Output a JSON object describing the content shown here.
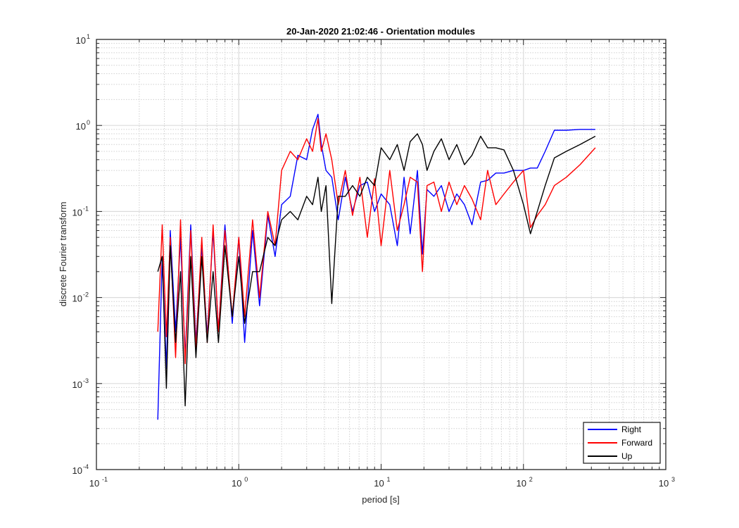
{
  "chart_data": {
    "type": "line",
    "title": "20-Jan-2020 21:02:46 - Orientation modules",
    "xlabel": "period [s]",
    "ylabel": "discrete Fourier transform",
    "xscale": "log",
    "yscale": "log",
    "xlim": [
      0.1,
      1000
    ],
    "ylim": [
      0.0001,
      10
    ],
    "grid": true,
    "minor_grid": true,
    "legend_placement": "bottom-right",
    "x_ticks": [
      {
        "base": "10",
        "exp": "-1"
      },
      {
        "base": "10",
        "exp": "0"
      },
      {
        "base": "10",
        "exp": "1"
      },
      {
        "base": "10",
        "exp": "2"
      },
      {
        "base": "10",
        "exp": "3"
      }
    ],
    "y_ticks": [
      {
        "base": "10",
        "exp": "-4"
      },
      {
        "base": "10",
        "exp": "-3"
      },
      {
        "base": "10",
        "exp": "-2"
      },
      {
        "base": "10",
        "exp": "-1"
      },
      {
        "base": "10",
        "exp": "0"
      },
      {
        "base": "10",
        "exp": "1"
      }
    ],
    "series": [
      {
        "name": "Right",
        "color": "#0000ff",
        "x": [
          0.27,
          0.29,
          0.31,
          0.33,
          0.36,
          0.39,
          0.42,
          0.46,
          0.5,
          0.55,
          0.6,
          0.66,
          0.72,
          0.8,
          0.9,
          1.0,
          1.1,
          1.25,
          1.4,
          1.6,
          1.8,
          2.0,
          2.3,
          2.6,
          3.0,
          3.3,
          3.6,
          3.8,
          4.1,
          4.5,
          5.0,
          5.6,
          6.3,
          7.1,
          8.0,
          9.0,
          10.0,
          11.5,
          13.0,
          14.5,
          16.0,
          18.0,
          19.5,
          21.0,
          23.5,
          26.5,
          30.0,
          34.0,
          38.5,
          43.5,
          50.0,
          56.0,
          64.0,
          73.0,
          85.0,
          100.0,
          112.0,
          125.0,
          142.0,
          165.0,
          200.0,
          250.0,
          320.0
        ],
        "y": [
          0.00038,
          0.03,
          0.0015,
          0.06,
          0.004,
          0.05,
          0.002,
          0.07,
          0.003,
          0.04,
          0.0035,
          0.06,
          0.004,
          0.07,
          0.005,
          0.05,
          0.003,
          0.06,
          0.008,
          0.09,
          0.03,
          0.12,
          0.15,
          0.45,
          0.4,
          0.9,
          1.35,
          0.6,
          0.3,
          0.25,
          0.08,
          0.25,
          0.1,
          0.2,
          0.22,
          0.1,
          0.16,
          0.12,
          0.04,
          0.25,
          0.055,
          0.3,
          0.032,
          0.18,
          0.15,
          0.2,
          0.1,
          0.16,
          0.12,
          0.07,
          0.22,
          0.23,
          0.28,
          0.28,
          0.3,
          0.3,
          0.32,
          0.32,
          0.5,
          0.88,
          0.88,
          0.9,
          0.9
        ]
      },
      {
        "name": "Forward",
        "color": "#ff0000",
        "x": [
          0.27,
          0.29,
          0.31,
          0.33,
          0.36,
          0.39,
          0.42,
          0.46,
          0.5,
          0.55,
          0.6,
          0.66,
          0.72,
          0.8,
          0.9,
          1.0,
          1.1,
          1.25,
          1.4,
          1.6,
          1.8,
          2.0,
          2.3,
          2.6,
          3.0,
          3.3,
          3.6,
          3.8,
          4.1,
          4.5,
          5.0,
          5.6,
          6.3,
          7.1,
          8.0,
          9.0,
          10.0,
          11.5,
          13.0,
          14.5,
          16.0,
          18.0,
          19.5,
          21.0,
          23.5,
          26.5,
          30.0,
          34.0,
          38.5,
          43.5,
          50.0,
          56.0,
          64.0,
          73.0,
          85.0,
          100.0,
          112.0,
          125.0,
          142.0,
          165.0,
          200.0,
          250.0,
          320.0
        ],
        "y": [
          0.004,
          0.07,
          0.0035,
          0.05,
          0.002,
          0.08,
          0.0017,
          0.06,
          0.0025,
          0.05,
          0.003,
          0.07,
          0.004,
          0.06,
          0.006,
          0.05,
          0.006,
          0.08,
          0.01,
          0.1,
          0.04,
          0.3,
          0.5,
          0.4,
          0.7,
          0.5,
          1.2,
          0.5,
          0.8,
          0.4,
          0.12,
          0.3,
          0.09,
          0.25,
          0.05,
          0.24,
          0.04,
          0.3,
          0.06,
          0.12,
          0.25,
          0.22,
          0.02,
          0.2,
          0.22,
          0.1,
          0.22,
          0.12,
          0.2,
          0.14,
          0.08,
          0.3,
          0.12,
          0.16,
          0.22,
          0.3,
          0.065,
          0.09,
          0.12,
          0.2,
          0.25,
          0.35,
          0.55
        ]
      },
      {
        "name": "Up",
        "color": "#000000",
        "x": [
          0.27,
          0.29,
          0.31,
          0.33,
          0.36,
          0.39,
          0.42,
          0.46,
          0.5,
          0.55,
          0.6,
          0.66,
          0.72,
          0.8,
          0.9,
          1.0,
          1.1,
          1.25,
          1.4,
          1.6,
          1.8,
          2.0,
          2.3,
          2.6,
          3.0,
          3.3,
          3.6,
          3.8,
          4.1,
          4.5,
          5.0,
          5.6,
          6.3,
          7.1,
          8.0,
          9.0,
          10.0,
          11.5,
          13.0,
          14.5,
          16.0,
          18.0,
          19.5,
          21.0,
          23.5,
          26.5,
          30.0,
          34.0,
          38.5,
          43.5,
          50.0,
          56.0,
          64.0,
          73.0,
          85.0,
          100.0,
          112.0,
          125.0,
          142.0,
          165.0,
          200.0,
          250.0,
          320.0
        ],
        "y": [
          0.02,
          0.03,
          0.00088,
          0.04,
          0.003,
          0.02,
          0.00055,
          0.03,
          0.002,
          0.03,
          0.003,
          0.02,
          0.003,
          0.04,
          0.006,
          0.03,
          0.005,
          0.02,
          0.02,
          0.05,
          0.04,
          0.08,
          0.1,
          0.08,
          0.15,
          0.12,
          0.25,
          0.1,
          0.2,
          0.0085,
          0.15,
          0.15,
          0.2,
          0.15,
          0.25,
          0.2,
          0.55,
          0.4,
          0.6,
          0.3,
          0.65,
          0.8,
          0.6,
          0.3,
          0.5,
          0.7,
          0.4,
          0.6,
          0.35,
          0.45,
          0.75,
          0.55,
          0.55,
          0.52,
          0.3,
          0.12,
          0.055,
          0.1,
          0.2,
          0.42,
          0.5,
          0.6,
          0.75
        ]
      }
    ]
  }
}
